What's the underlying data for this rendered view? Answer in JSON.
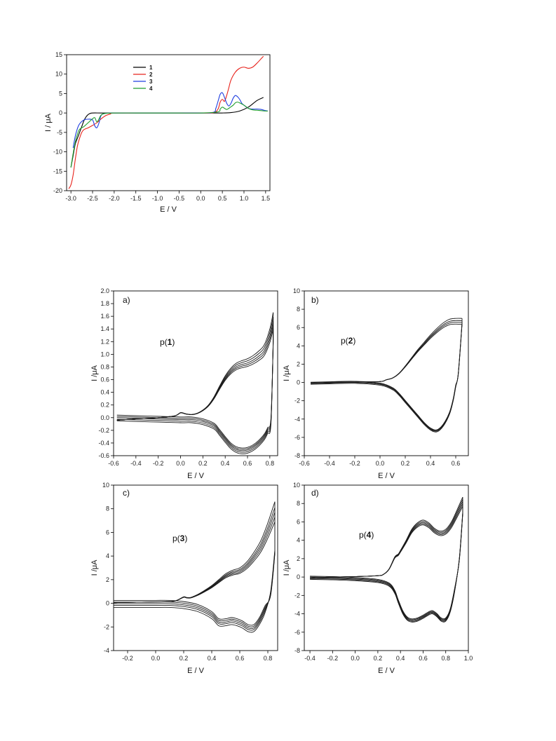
{
  "chart_data": [
    {
      "id": "overview",
      "type": "line",
      "xlabel": "E / V",
      "ylabel": "I / μA",
      "xlim": [
        -3.1,
        1.6
      ],
      "ylim": [
        -20,
        15
      ],
      "xticks": [
        -3.0,
        -2.5,
        -2.0,
        -1.5,
        -1.0,
        -0.5,
        0.0,
        0.5,
        1.0,
        1.5
      ],
      "xtick_labels": [
        "-3.0",
        "-2.5",
        "-2.0",
        "-1.5",
        "-1.0",
        "-0.5",
        "0.0",
        "0.5",
        "1.0",
        "1.5"
      ],
      "yticks": [
        -20,
        -15,
        -10,
        -5,
        0,
        5,
        10,
        15
      ],
      "ytick_labels": [
        "-20",
        "-15",
        "-10",
        "-5",
        "0",
        "5",
        "10",
        "15"
      ],
      "legend_position": "top-left",
      "series": [
        {
          "name": "1",
          "color": "#000000",
          "x": [
            -3.0,
            -2.95,
            -2.9,
            -2.85,
            -2.8,
            -2.75,
            -2.7,
            -2.65,
            -2.6,
            -2.55,
            -2.5,
            -2.3,
            -2.0,
            -1.5,
            -1.0,
            0.0,
            0.5,
            0.7,
            0.9,
            1.1,
            1.3,
            1.45
          ],
          "y": [
            -14,
            -11,
            -8,
            -6.5,
            -5,
            -3.5,
            -2,
            -1,
            -0.4,
            -0.1,
            0,
            0,
            0,
            0,
            0,
            0,
            0,
            0.1,
            0.5,
            1.5,
            3.2,
            4.0
          ]
        },
        {
          "name": "2",
          "color": "#e8231c",
          "x": [
            -3.05,
            -3.0,
            -2.95,
            -2.9,
            -2.85,
            -2.8,
            -2.75,
            -2.7,
            -2.6,
            -2.5,
            -2.4,
            -2.3,
            -2.2,
            -2.1,
            -2.0,
            -1.5,
            -1.0,
            -0.5,
            0.0,
            0.3,
            0.4,
            0.45,
            0.5,
            0.55,
            0.6,
            0.65,
            0.7,
            0.8,
            0.9,
            1.0,
            1.1,
            1.2,
            1.3,
            1.4,
            1.45
          ],
          "y": [
            -19.5,
            -18.5,
            -16,
            -12,
            -8.5,
            -6.5,
            -5,
            -4.3,
            -3.8,
            -3.2,
            -2.5,
            -1.5,
            -0.7,
            -0.3,
            0,
            0,
            0,
            0,
            0,
            0.1,
            1,
            2.8,
            3.5,
            3.0,
            4.5,
            6.5,
            8.5,
            10.5,
            11.5,
            11.8,
            11.5,
            11.8,
            12.8,
            14,
            14.6
          ]
        },
        {
          "name": "3",
          "color": "#1f3ee0",
          "x": [
            -2.95,
            -2.9,
            -2.85,
            -2.8,
            -2.7,
            -2.6,
            -2.5,
            -2.45,
            -2.4,
            -2.35,
            -2.3,
            -2.2,
            -2.0,
            -1.5,
            -1.0,
            0.0,
            0.3,
            0.35,
            0.4,
            0.45,
            0.5,
            0.55,
            0.6,
            0.65,
            0.7,
            0.75,
            0.8,
            0.85,
            0.9,
            0.95,
            1.0,
            1.1,
            1.2,
            1.3,
            1.4,
            1.5,
            1.55
          ],
          "y": [
            -9,
            -6,
            -4,
            -2.8,
            -1.8,
            -1.6,
            -1.8,
            -3.3,
            -3.8,
            -2.5,
            -0.6,
            -0.1,
            0,
            0,
            0,
            0,
            0.2,
            1.2,
            3.0,
            4.8,
            5.2,
            4.0,
            2.5,
            1.8,
            2.5,
            3.8,
            4.5,
            4.2,
            3.5,
            2.5,
            2.0,
            1.2,
            1.0,
            1.0,
            0.9,
            0.6,
            0.5
          ]
        },
        {
          "name": "4",
          "color": "#1f9e2c",
          "x": [
            -3.0,
            -2.95,
            -2.9,
            -2.85,
            -2.8,
            -2.7,
            -2.6,
            -2.5,
            -2.45,
            -2.4,
            -2.35,
            -2.3,
            -2.2,
            -2.0,
            -1.5,
            -1.0,
            0.0,
            0.4,
            0.45,
            0.5,
            0.55,
            0.6,
            0.65,
            0.7,
            0.75,
            0.8,
            0.85,
            0.9,
            1.0,
            1.1,
            1.2,
            1.3,
            1.4,
            1.5,
            1.55
          ],
          "y": [
            -14,
            -10.5,
            -7.5,
            -5.5,
            -4.2,
            -3.5,
            -2.5,
            -1.5,
            -1.2,
            -2.3,
            -1.5,
            -0.5,
            -0.1,
            0,
            0,
            0,
            0,
            0.3,
            1.0,
            1.5,
            1.2,
            0.9,
            1.2,
            1.6,
            2.0,
            2.6,
            2.8,
            2.6,
            2.0,
            1.2,
            0.8,
            0.7,
            0.6,
            0.5,
            0.5
          ]
        }
      ]
    },
    {
      "id": "a",
      "type": "line",
      "panel_label": "a)",
      "title": [
        "p(",
        "1",
        ")"
      ],
      "xlabel": "E / V",
      "ylabel": "I /μA",
      "xlim": [
        -0.6,
        0.87
      ],
      "ylim": [
        -0.6,
        2.0
      ],
      "xticks": [
        -0.6,
        -0.4,
        -0.2,
        0.0,
        0.2,
        0.4,
        0.6,
        0.8
      ],
      "xtick_labels": [
        "-0.6",
        "-0.4",
        "-0.2",
        "0.0",
        "0.2",
        "0.4",
        "0.6",
        "0.8"
      ],
      "yticks": [
        -0.6,
        -0.4,
        -0.2,
        0.0,
        0.2,
        0.4,
        0.6,
        0.8,
        1.0,
        1.2,
        1.4,
        1.6,
        1.8,
        2.0
      ],
      "ytick_labels": [
        "-0.6",
        "-0.4",
        "-0.2",
        "0.0",
        "0.2",
        "0.4",
        "0.6",
        "0.8",
        "1.0",
        "1.2",
        "1.4",
        "1.6",
        "1.8",
        "2.0"
      ],
      "scan_count": 5,
      "scan_spread": [
        0,
        -0.07,
        -0.14,
        -0.2,
        -0.26
      ],
      "forward": {
        "x": [
          -0.57,
          -0.4,
          -0.2,
          -0.05,
          0.0,
          0.05,
          0.1,
          0.15,
          0.2,
          0.25,
          0.3,
          0.35,
          0.4,
          0.45,
          0.5,
          0.55,
          0.6,
          0.65,
          0.7,
          0.75,
          0.8,
          0.83
        ],
        "y": [
          -0.04,
          -0.02,
          0.0,
          0.03,
          0.08,
          0.06,
          0.05,
          0.07,
          0.12,
          0.2,
          0.33,
          0.5,
          0.66,
          0.78,
          0.86,
          0.9,
          0.93,
          0.98,
          1.05,
          1.15,
          1.4,
          1.66
        ]
      },
      "reverse": {
        "x": [
          0.83,
          0.81,
          0.78,
          0.75,
          0.7,
          0.65,
          0.6,
          0.55,
          0.5,
          0.45,
          0.4,
          0.35,
          0.3,
          0.2,
          0.1,
          0.0,
          -0.2,
          -0.4,
          -0.57
        ],
        "y": [
          1.2,
          -0.1,
          -0.25,
          -0.35,
          -0.45,
          -0.52,
          -0.56,
          -0.57,
          -0.55,
          -0.49,
          -0.39,
          -0.28,
          -0.18,
          -0.11,
          -0.08,
          -0.08,
          -0.07,
          -0.06,
          -0.05
        ]
      }
    },
    {
      "id": "b",
      "type": "line",
      "panel_label": "b)",
      "title": [
        "p(",
        "2",
        ")"
      ],
      "xlabel": "E / V",
      "ylabel": "I /μA",
      "xlim": [
        -0.6,
        0.7
      ],
      "ylim": [
        -8,
        10
      ],
      "xticks": [
        -0.6,
        -0.4,
        -0.2,
        0.0,
        0.2,
        0.4,
        0.6
      ],
      "xtick_labels": [
        "-0.6",
        "-0.4",
        "-0.2",
        "0.0",
        "0.2",
        "0.4",
        "0.6"
      ],
      "yticks": [
        -8,
        -6,
        -4,
        -2,
        0,
        2,
        4,
        6,
        8,
        10
      ],
      "ytick_labels": [
        "-8",
        "-6",
        "-4",
        "-2",
        "0",
        "2",
        "4",
        "6",
        "8",
        "10"
      ],
      "scan_count": 4,
      "scan_spread": [
        0,
        -0.25,
        -0.45,
        -0.65
      ],
      "forward": {
        "x": [
          -0.55,
          -0.4,
          -0.2,
          0.0,
          0.05,
          0.1,
          0.15,
          0.2,
          0.25,
          0.3,
          0.35,
          0.4,
          0.45,
          0.5,
          0.55,
          0.6,
          0.65
        ],
        "y": [
          -0.1,
          0.0,
          0.05,
          0.1,
          0.3,
          0.5,
          1.0,
          1.8,
          2.7,
          3.6,
          4.4,
          5.2,
          5.9,
          6.5,
          6.9,
          7.0,
          7.0
        ]
      },
      "reverse": {
        "x": [
          0.65,
          0.62,
          0.6,
          0.58,
          0.55,
          0.5,
          0.45,
          0.4,
          0.35,
          0.3,
          0.25,
          0.2,
          0.15,
          0.1,
          0.0,
          -0.2,
          -0.4,
          -0.55
        ],
        "y": [
          6.5,
          1.0,
          -0.5,
          -2.0,
          -3.5,
          -4.8,
          -5.4,
          -5.2,
          -4.6,
          -3.8,
          -3.0,
          -2.2,
          -1.4,
          -0.8,
          -0.3,
          -0.1,
          -0.15,
          -0.2
        ]
      }
    },
    {
      "id": "c",
      "type": "line",
      "panel_label": "c)",
      "title": [
        "p(",
        "3",
        ")"
      ],
      "xlabel": "E / V",
      "ylabel": "I /μA",
      "xlim": [
        -0.3,
        0.87
      ],
      "ylim": [
        -4,
        10
      ],
      "xticks": [
        -0.2,
        0.0,
        0.2,
        0.4,
        0.6,
        0.8
      ],
      "xtick_labels": [
        "-0.2",
        "0.0",
        "0.2",
        "0.4",
        "0.6",
        "0.8"
      ],
      "yticks": [
        -4,
        -2,
        0,
        2,
        4,
        6,
        8,
        10
      ],
      "ytick_labels": [
        "-4",
        "-2",
        "0",
        "2",
        "4",
        "6",
        "8",
        "10"
      ],
      "scan_count": 5,
      "scan_spread": [
        0,
        -0.5,
        -0.9,
        -1.3,
        -1.7
      ],
      "forward": {
        "x": [
          -0.3,
          -0.1,
          0.1,
          0.15,
          0.2,
          0.22,
          0.25,
          0.3,
          0.35,
          0.4,
          0.45,
          0.5,
          0.55,
          0.6,
          0.65,
          0.7,
          0.75,
          0.8,
          0.85
        ],
        "y": [
          0.05,
          0.1,
          0.15,
          0.25,
          0.55,
          0.5,
          0.5,
          0.75,
          1.1,
          1.5,
          2.0,
          2.5,
          2.8,
          3.0,
          3.5,
          4.3,
          5.3,
          6.8,
          8.6
        ]
      },
      "reverse": {
        "x": [
          0.85,
          0.82,
          0.78,
          0.74,
          0.7,
          0.66,
          0.62,
          0.58,
          0.54,
          0.5,
          0.45,
          0.4,
          0.3,
          0.2,
          0.1,
          0.0,
          -0.1,
          -0.3
        ],
        "y": [
          4.5,
          1.0,
          -0.8,
          -1.8,
          -2.4,
          -2.4,
          -2.1,
          -1.9,
          -1.8,
          -1.9,
          -1.9,
          -1.3,
          -0.7,
          -0.45,
          -0.35,
          -0.35,
          -0.35,
          -0.35
        ]
      }
    },
    {
      "id": "d",
      "type": "line",
      "panel_label": "d)",
      "title": [
        "p(",
        "4",
        ")"
      ],
      "xlabel": "E / V",
      "ylabel": "I /μA",
      "xlim": [
        -0.45,
        1.0
      ],
      "ylim": [
        -8,
        10
      ],
      "xticks": [
        -0.4,
        -0.2,
        0.0,
        0.2,
        0.4,
        0.6,
        0.8,
        1.0
      ],
      "xtick_labels": [
        "-0.4",
        "-0.2",
        "0.0",
        "0.2",
        "0.4",
        "0.6",
        "0.8",
        "1.0"
      ],
      "yticks": [
        -8,
        -6,
        -4,
        -2,
        0,
        2,
        4,
        6,
        8,
        10
      ],
      "ytick_labels": [
        "-8",
        "-6",
        "-4",
        "-2",
        "0",
        "2",
        "4",
        "6",
        "8",
        "10"
      ],
      "scan_count": 5,
      "scan_spread": [
        0,
        -0.25,
        -0.5,
        -0.75,
        -1.0
      ],
      "forward": {
        "x": [
          -0.4,
          -0.2,
          0.0,
          0.2,
          0.25,
          0.3,
          0.35,
          0.38,
          0.4,
          0.45,
          0.5,
          0.55,
          0.6,
          0.65,
          0.7,
          0.75,
          0.8,
          0.85,
          0.9,
          0.95
        ],
        "y": [
          -0.1,
          0.0,
          0.05,
          0.15,
          0.3,
          0.9,
          2.2,
          2.5,
          2.9,
          4.0,
          5.2,
          5.9,
          6.2,
          5.9,
          5.3,
          5.0,
          5.2,
          6.0,
          7.3,
          8.7
        ]
      },
      "reverse": {
        "x": [
          0.95,
          0.92,
          0.88,
          0.84,
          0.8,
          0.76,
          0.72,
          0.68,
          0.64,
          0.6,
          0.55,
          0.5,
          0.46,
          0.42,
          0.38,
          0.35,
          0.3,
          0.2,
          0.0,
          -0.2,
          -0.4
        ],
        "y": [
          7.0,
          2.0,
          -1.5,
          -3.8,
          -4.8,
          -4.8,
          -4.3,
          -4.0,
          -4.2,
          -4.5,
          -4.8,
          -4.9,
          -4.7,
          -4.0,
          -2.8,
          -1.8,
          -1.0,
          -0.6,
          -0.4,
          -0.3,
          -0.25
        ]
      }
    }
  ]
}
